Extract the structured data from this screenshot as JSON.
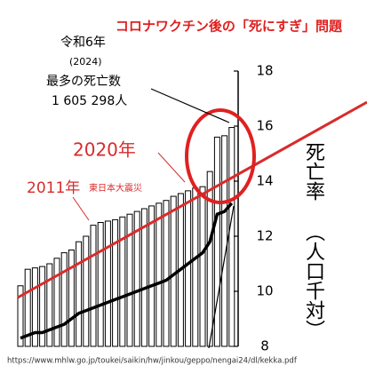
{
  "chart_data": {
    "type": "bar_line",
    "title": "コロナワクチン後の「死にすぎ」問題",
    "y_label": "死亡率",
    "y_label_sub": "（人口千対）",
    "annotations": [
      "令和6年",
      "(2024)",
      "最多の死亡数",
      "1 605 298人",
      "2020年",
      "2011年",
      "東日本大震災"
    ],
    "source": "https://www.mhlw.go.jp/toukei/saikin/hw/jinkou/geppo/nengai24/dl/kekka.pdf",
    "categories": [
      null,
      null,
      null,
      null,
      null,
      null,
      null,
      null,
      null,
      null,
      null,
      null,
      null,
      null,
      null,
      null,
      null,
      null,
      null,
      null,
      null,
      null,
      null,
      null,
      null,
      null,
      null,
      null,
      null,
      null
    ],
    "series": [
      {
        "type": "bar",
        "color": "#ffffff",
        "values": [
          10.2,
          10.8,
          10.85,
          10.9,
          11.0,
          11.2,
          11.4,
          11.5,
          11.8,
          12.0,
          12.4,
          12.5,
          12.55,
          12.6,
          12.7,
          12.8,
          12.9,
          13.0,
          13.1,
          13.2,
          13.3,
          13.45,
          13.55,
          13.65,
          13.75,
          13.8,
          14.35,
          15.6,
          15.65,
          15.95
        ]
      },
      {
        "type": "line",
        "color": "#000000",
        "values": [
          8.3,
          8.4,
          8.5,
          8.5,
          8.6,
          8.7,
          8.8,
          9.0,
          9.2,
          9.3,
          9.4,
          9.5,
          9.6,
          9.7,
          9.8,
          9.9,
          10.0,
          10.1,
          10.2,
          10.3,
          10.4,
          10.6,
          10.8,
          11.0,
          11.2,
          11.4,
          11.8,
          12.8,
          12.9,
          13.2
        ]
      }
    ],
    "ylim": [
      8,
      18
    ],
    "yticks": [
      8,
      10,
      12,
      14,
      16,
      18
    ]
  }
}
